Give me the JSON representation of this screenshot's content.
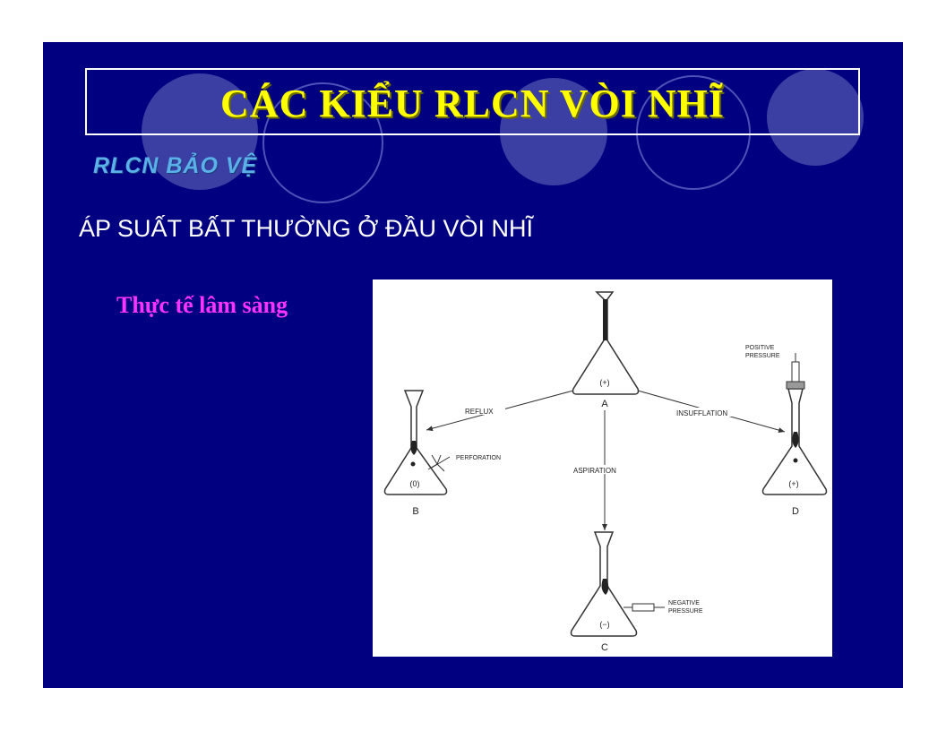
{
  "slide": {
    "title": "CÁC KIỂU RLCN VÒI NHĨ",
    "subtitle": "RLCN BẢO VỆ",
    "heading": "ÁP SUẤT BẤT THƯỜNG Ở ĐẦU VÒI NHĨ",
    "label": "Thực tế lâm sàng",
    "colors": {
      "background": "#000080",
      "title": "#ffff00",
      "subtitle": "#5ab0e8",
      "label": "#ff33ff"
    }
  },
  "figure": {
    "flasks": {
      "a": {
        "letter": "A",
        "sign": "(+)"
      },
      "b": {
        "letter": "B",
        "sign": "(0)"
      },
      "c": {
        "letter": "C",
        "sign": "(−)"
      },
      "d": {
        "letter": "D",
        "sign": "(+)"
      }
    },
    "arrows": {
      "reflux": "REFLUX",
      "insufflation": "INSUFFLATION",
      "aspiration": "ASPIRATION"
    },
    "notes": {
      "perforation": "PERFORATION",
      "positive_1": "POSITIVE",
      "positive_2": "PRESSURE",
      "negative_1": "NEGATIVE",
      "negative_2": "PRESSURE"
    }
  }
}
